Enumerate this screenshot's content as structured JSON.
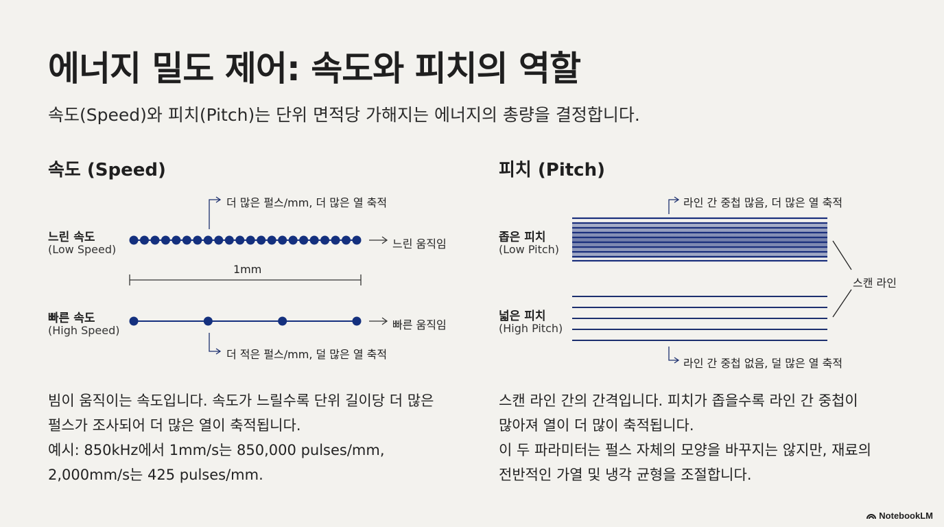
{
  "title": "에너지 밀도 제어: 속도와 피치의 역할",
  "subtitle": "속도(Speed)와 피치(Pitch)는 단위 면적당 가해지는 에너지의 총량을 결정합니다.",
  "speed": {
    "heading": "속도 (Speed)",
    "slow_label": "느린 속도",
    "slow_sub": "(Low Speed)",
    "fast_label": "빠른 속도",
    "fast_sub": "(High Speed)",
    "slow_note": "더 많은 펄스/mm, 더 많은 열 축적",
    "fast_note": "더 적은 펄스/mm, 덜 많은 열 축적",
    "slow_arrow_text": "느린 움직임",
    "fast_arrow_text": "빠른 움직임",
    "scale_label": "1mm",
    "slow_pulse_count": 22,
    "fast_pulse_count": 4,
    "description": [
      "빔이 움직이는 속도입니다. 속도가 느릴수록 단위 길이당 더 많은",
      "펄스가 조사되어 더 많은 열이 축적됩니다.",
      "예시: 850kHz에서 1mm/s는 850,000 pulses/mm,",
      "2,000mm/s는 425 pulses/mm."
    ]
  },
  "pitch": {
    "heading": "피치 (Pitch)",
    "low_label": "좁은 피치",
    "low_sub": "(Low Pitch)",
    "high_label": "넓은 피치",
    "high_sub": "(High Pitch)",
    "low_note": "라인 간 중첩 많음, 더 많은 열 축적",
    "high_note": "라인 간 중첩 없음, 덜 많은 열 축적",
    "scan_line_label": "스캔 라인",
    "description": [
      "스캔 라인 간의 간격입니다. 피치가 좁을수록 라인 간 중첩이",
      "많아져 열이 더 많이 축적됩니다.",
      "이 두 파라미터는 펄스 자체의 모양을 바꾸지는 않지만, 재료의",
      "전반적인 가열 및 냉각 균형을 조절합니다."
    ]
  },
  "brand": "NotebookLM",
  "colors": {
    "accent": "#14307e",
    "line": "#1c2f6e",
    "text": "#222222",
    "background": "#f3f2ee"
  },
  "icons": {
    "arrow": "right-arrow-icon",
    "brand": "notebooklm-logo-icon"
  }
}
